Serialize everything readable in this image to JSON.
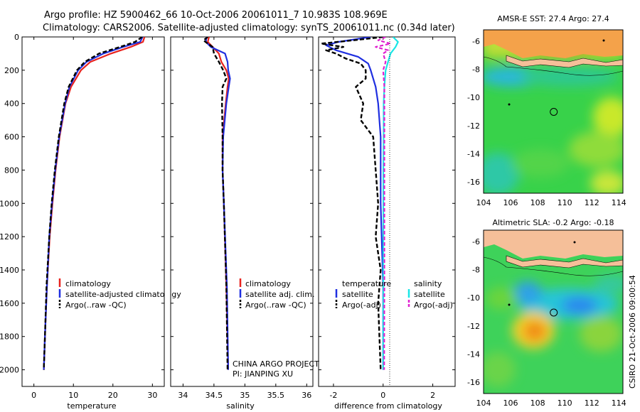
{
  "title_line1": "Argo profile: HZ 5900462_66 10-Oct-2006 20061011_7 10.983S 108.969E",
  "title_line2": "Climatology: CARS2006. Satellite-adjusted climatology: synTS_20061011.nc (0.34d later)",
  "sst_title": "AMSR-E SST: 27.4 Argo: 27.4",
  "sla_title": "Altimetric SLA: -0.2 Argo: -0.18",
  "side_text": "CSIRO 21-Oct-2006 09:00:54",
  "project_line1": "CHINA ARGO PROJECT",
  "project_line2": "PI: JIANPING XU",
  "colors": {
    "climatology": "#e8231e",
    "satellite": "#1f2fe0",
    "argo": "#000000",
    "sal_satellite": "#19e6e6",
    "sal_argo": "#e020d0",
    "land": "#f5bf99"
  },
  "chart_data": [
    {
      "type": "line",
      "panel": "temperature",
      "xlabel": "temperature",
      "xlim": [
        -3,
        33
      ],
      "ylim": [
        0,
        2100
      ],
      "xticks": [
        "0",
        "10",
        "20",
        "30"
      ],
      "yticks": [
        "0",
        "200",
        "400",
        "600",
        "800",
        "1000",
        "1200",
        "1400",
        "1600",
        "1800",
        "2000"
      ],
      "legend": [
        "climatology",
        "satellite-adjusted climatology",
        "Argo(..raw -QC)"
      ],
      "series": [
        {
          "name": "climatology",
          "depth": [
            0,
            30,
            60,
            100,
            150,
            200,
            300,
            400,
            600,
            800,
            1000,
            1200,
            1500,
            1800,
            2000
          ],
          "values": [
            28.0,
            27.6,
            24.5,
            19.5,
            14.3,
            11.9,
            9.4,
            8.0,
            6.5,
            5.5,
            4.7,
            4.0,
            3.3,
            2.8,
            2.5
          ]
        },
        {
          "name": "satellite-adjusted climatology",
          "depth": [
            0,
            30,
            60,
            100,
            150,
            200,
            300,
            400,
            600,
            800,
            1000,
            1200,
            1500,
            1800,
            2000
          ],
          "values": [
            27.5,
            26.9,
            22.6,
            17.6,
            13.3,
            11.2,
            9.0,
            7.9,
            6.4,
            5.4,
            4.6,
            3.9,
            3.3,
            2.8,
            2.5
          ]
        },
        {
          "name": "Argo(..raw -QC)",
          "depth": [
            0,
            30,
            60,
            100,
            150,
            200,
            300,
            400,
            600,
            800,
            1000,
            1200,
            1500,
            1800,
            2000
          ],
          "values": [
            27.4,
            25.6,
            21.8,
            16.5,
            12.9,
            10.9,
            8.8,
            7.7,
            6.3,
            5.3,
            4.5,
            3.9,
            3.2,
            2.8,
            2.5
          ]
        }
      ]
    },
    {
      "type": "line",
      "panel": "salinity",
      "xlabel": "salinity",
      "xlim": [
        33.8,
        36.1
      ],
      "ylim": [
        0,
        2100
      ],
      "xticks": [
        "34",
        "34.5",
        "35",
        "35.5",
        "36"
      ],
      "legend": [
        "climatology",
        "satellite adj. clim.",
        "Argo(..raw -QC)"
      ],
      "series": [
        {
          "name": "climatology",
          "depth": [
            0,
            30,
            60,
            100,
            150,
            200,
            250,
            300,
            400,
            600,
            800,
            1000,
            1500,
            2000
          ],
          "values": [
            34.42,
            34.4,
            34.48,
            34.58,
            34.62,
            34.7,
            34.74,
            34.72,
            34.69,
            34.64,
            34.64,
            34.66,
            34.7,
            34.73
          ]
        },
        {
          "name": "satellite adj. clim.",
          "depth": [
            0,
            30,
            60,
            100,
            150,
            200,
            250,
            300,
            400,
            600,
            800,
            1000,
            1500,
            2000
          ],
          "values": [
            34.38,
            34.37,
            34.45,
            34.68,
            34.72,
            34.73,
            34.76,
            34.74,
            34.7,
            34.65,
            34.64,
            34.66,
            34.71,
            34.73
          ]
        },
        {
          "name": "Argo(..raw -QC)",
          "depth": [
            0,
            20,
            40,
            60,
            100,
            150,
            200,
            250,
            300,
            400,
            600,
            800,
            1000,
            1500,
            2000
          ],
          "values": [
            34.4,
            34.33,
            34.4,
            34.48,
            34.5,
            34.58,
            34.65,
            34.7,
            34.64,
            34.63,
            34.64,
            34.64,
            34.66,
            34.7,
            34.72
          ]
        }
      ]
    },
    {
      "type": "line",
      "panel": "difference",
      "xlabel": "difference from climatology",
      "xlim": [
        -2.6,
        2.9
      ],
      "ylim": [
        0,
        2100
      ],
      "xticks": [
        "-2",
        "0",
        "2"
      ],
      "legend": [
        "temperature",
        "satellite",
        "Argo(-adj)",
        "salinity",
        "satellite",
        "Argo(-adj)"
      ],
      "series": [
        {
          "name": "temperature satellite",
          "depth": [
            0,
            30,
            50,
            80,
            120,
            160,
            200,
            300,
            400,
            600,
            800,
            1000,
            1500,
            2000
          ],
          "values": [
            -0.5,
            -1.8,
            -2.3,
            -1.9,
            -1.0,
            -0.6,
            -0.5,
            -0.3,
            -0.2,
            -0.1,
            -0.1,
            -0.1,
            0.0,
            0.0
          ]
        },
        {
          "name": "temperature Argo(-adj)",
          "depth": [
            0,
            20,
            40,
            60,
            80,
            100,
            130,
            160,
            200,
            250,
            300,
            400,
            500,
            600,
            800,
            1000,
            1200,
            1400,
            1600,
            2000
          ],
          "values": [
            0.0,
            -1.2,
            -2.5,
            -1.6,
            -2.3,
            -1.9,
            -1.5,
            -0.9,
            -0.7,
            -0.7,
            -1.1,
            -0.8,
            -0.9,
            -0.4,
            -0.3,
            -0.2,
            -0.3,
            -0.1,
            -0.2,
            -0.1
          ]
        },
        {
          "name": "salinity satellite",
          "depth": [
            0,
            30,
            60,
            100,
            150,
            200,
            300,
            400,
            600,
            800,
            1000,
            1500,
            2000
          ],
          "values": [
            0.4,
            0.6,
            0.5,
            0.3,
            0.2,
            0.1,
            0.05,
            0.02,
            0.02,
            0.01,
            0.01,
            0.01,
            0.0
          ]
        },
        {
          "name": "salinity Argo(-adj)",
          "depth": [
            0,
            20,
            40,
            60,
            80,
            100,
            150,
            200,
            300,
            400,
            600,
            800,
            1000,
            1500,
            2000
          ],
          "values": [
            0.1,
            -0.2,
            0.3,
            -0.3,
            0.2,
            0.0,
            0.1,
            0.0,
            0.05,
            0.05,
            0.05,
            0.05,
            0.05,
            0.05,
            0.04
          ]
        }
      ]
    },
    {
      "type": "heatmap",
      "panel": "AMSR-E SST map",
      "title": "AMSR-E SST: 27.4 Argo: 27.4",
      "xlim": [
        104,
        114.3
      ],
      "ylim": [
        -16.8,
        -5.2
      ],
      "xticks": [
        "104",
        "106",
        "108",
        "110",
        "112",
        "114"
      ],
      "yticks": [
        "-6",
        "-8",
        "-10",
        "-12",
        "-14",
        "-16"
      ],
      "argo_position": {
        "lon": 108.969,
        "lat": -10.983
      }
    },
    {
      "type": "heatmap",
      "panel": "Altimetric SLA map",
      "title": "Altimetric SLA: -0.2 Argo: -0.18",
      "xlim": [
        104,
        114.3
      ],
      "ylim": [
        -16.8,
        -5.2
      ],
      "xticks": [
        "104",
        "106",
        "108",
        "110",
        "112",
        "114"
      ],
      "yticks": [
        "-6",
        "-8",
        "-10",
        "-12",
        "-14",
        "-16"
      ],
      "argo_position": {
        "lon": 108.969,
        "lat": -10.983
      }
    }
  ]
}
